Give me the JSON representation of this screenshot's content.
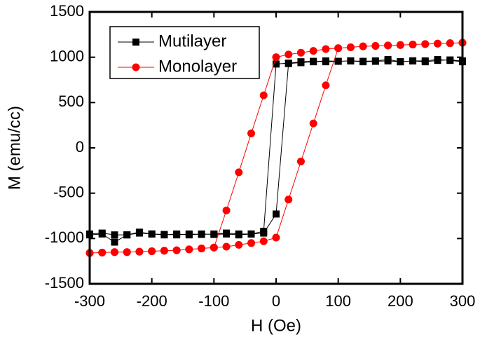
{
  "chart_data": {
    "type": "line",
    "xlabel": "H (Oe)",
    "ylabel": "M (emu/cc)",
    "xlim": [
      -300,
      300
    ],
    "xticks": [
      -300,
      -200,
      -100,
      0,
      100,
      200,
      300
    ],
    "ylim": [
      -1500,
      1500
    ],
    "yticks": [
      -1500,
      -1000,
      -500,
      0,
      500,
      1000,
      1500
    ],
    "legend": "upper left",
    "series": [
      {
        "name": "Mutilayer",
        "color": "#000000",
        "marker": "square",
        "x": [
          300,
          280,
          260,
          240,
          220,
          200,
          180,
          160,
          140,
          120,
          100,
          80,
          60,
          40,
          20,
          0,
          -20,
          -40,
          -60,
          -80,
          -100,
          -120,
          -140,
          -160,
          -180,
          -200,
          -220,
          -240,
          -260,
          -280,
          -300,
          -300,
          -280,
          -260,
          -240,
          -220,
          -200,
          -180,
          -160,
          -140,
          -120,
          -100,
          -80,
          -60,
          -40,
          -20,
          0,
          20,
          40,
          60,
          80,
          100,
          120,
          140,
          160,
          180,
          200,
          220,
          240,
          260,
          280,
          300
        ],
        "values": [
          960,
          970,
          965,
          950,
          960,
          950,
          975,
          960,
          955,
          960,
          955,
          950,
          955,
          950,
          935,
          925,
          -920,
          -950,
          -950,
          -940,
          -950,
          -955,
          -950,
          -960,
          -955,
          -950,
          -930,
          -960,
          -960,
          -940,
          -950,
          -960,
          -950,
          -1040,
          -960,
          -940,
          -950,
          -960,
          -950,
          -960,
          -950,
          -955,
          -950,
          -960,
          -950,
          -940,
          -730,
          930,
          940,
          950,
          960,
          955,
          960,
          950,
          955,
          960,
          950,
          960,
          960,
          975,
          965,
          950
        ]
      },
      {
        "name": "Monolayer",
        "color": "#ff0000",
        "marker": "circle",
        "x": [
          300,
          280,
          260,
          240,
          220,
          200,
          180,
          160,
          140,
          120,
          100,
          80,
          60,
          40,
          20,
          0,
          -20,
          -40,
          -60,
          -80,
          -100,
          -120,
          -140,
          -160,
          -180,
          -200,
          -220,
          -240,
          -260,
          -280,
          -300,
          -300,
          -280,
          -260,
          -240,
          -220,
          -200,
          -180,
          -160,
          -140,
          -120,
          -100,
          -80,
          -60,
          -40,
          -20,
          0,
          20,
          40,
          60,
          80,
          100,
          120,
          140,
          160,
          180,
          200,
          220,
          240,
          260,
          280,
          300
        ],
        "values": [
          1160,
          1155,
          1150,
          1145,
          1140,
          1135,
          1130,
          1125,
          1120,
          1110,
          1100,
          1090,
          1070,
          1050,
          1030,
          1000,
          580,
          160,
          -270,
          -690,
          -1100,
          -1110,
          -1120,
          -1130,
          -1135,
          -1140,
          -1145,
          -1150,
          -1150,
          -1155,
          -1160,
          -1160,
          -1155,
          -1150,
          -1150,
          -1145,
          -1140,
          -1135,
          -1130,
          -1120,
          -1110,
          -1100,
          -1090,
          -1070,
          -1050,
          -1030,
          -990,
          -570,
          -150,
          270,
          690,
          1100,
          1110,
          1120,
          1125,
          1130,
          1135,
          1140,
          1145,
          1150,
          1155,
          1160
        ]
      }
    ]
  }
}
